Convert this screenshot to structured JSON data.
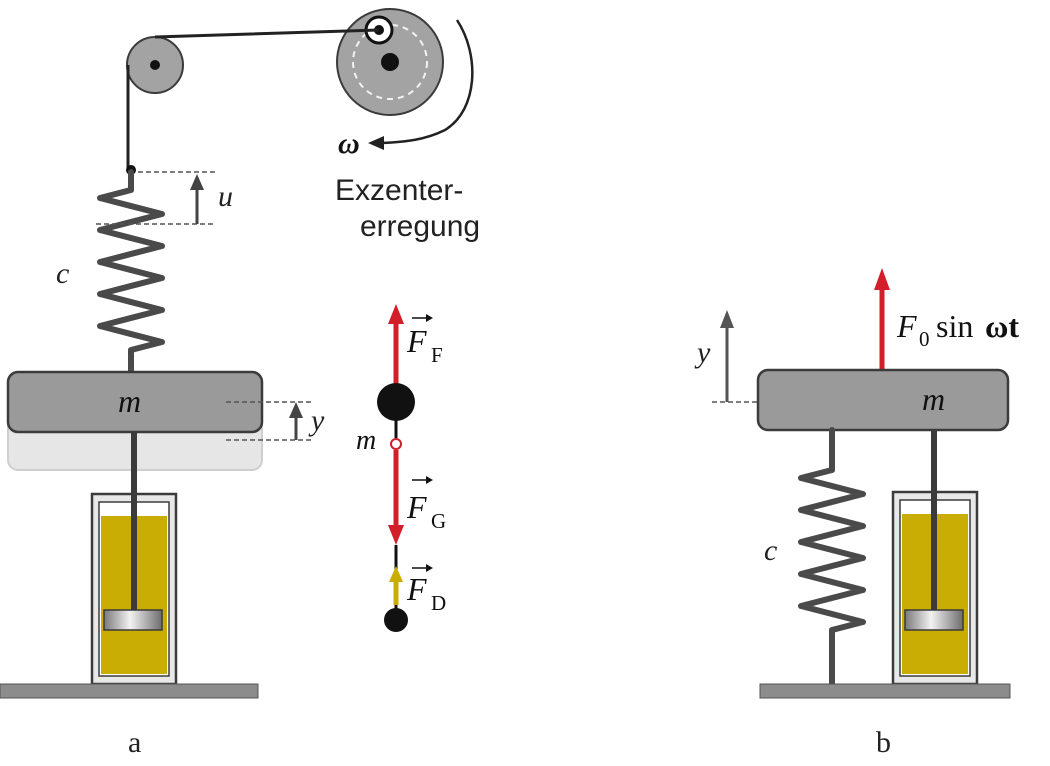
{
  "labels": {
    "omega": "ω",
    "exzenter_line1": "Exzenter-",
    "exzenter_line2": "erregung",
    "u": "u",
    "c": "c",
    "m": "m",
    "y": "y",
    "F_letter": "F",
    "sub_F": "F",
    "sub_G": "G",
    "sub_D": "D",
    "F0_letter": "F",
    "F0_sub": "0",
    "sin_word": "sin",
    "omega_t": "ωt",
    "caption_a": "a",
    "caption_b": "b"
  },
  "colors": {
    "force_red": "#d21f2a",
    "damper_yellow": "#f1c40f",
    "oil": "#c9ad05",
    "mass_gray": "#9a9a9a",
    "spring": "#4a4a4a"
  }
}
